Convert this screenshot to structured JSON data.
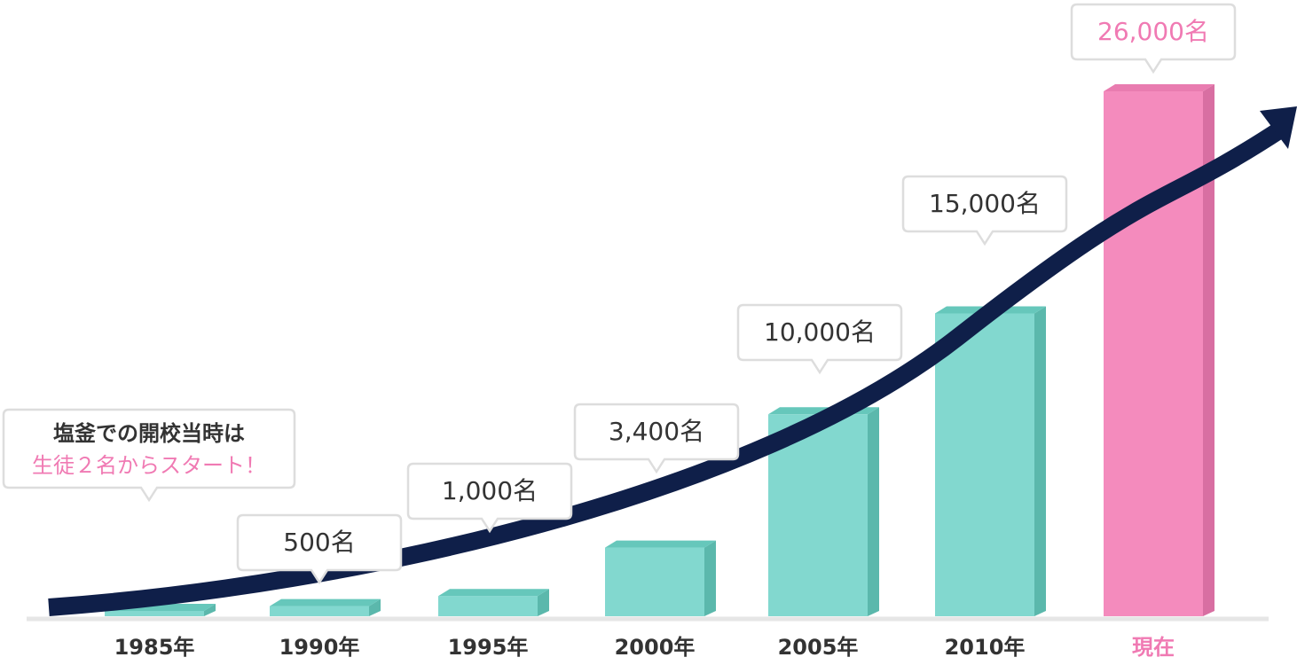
{
  "chart_data": {
    "type": "bar",
    "categories": [
      "1985年",
      "1990年",
      "1995年",
      "2000年",
      "2005年",
      "2010年",
      "現在"
    ],
    "values": [
      2,
      500,
      1000,
      3400,
      10000,
      15000,
      26000
    ],
    "data_labels": [
      "",
      "500名",
      "1,000名",
      "3,400名",
      "10,000名",
      "15,000名",
      "26,000名"
    ],
    "highlight_index": 6,
    "note": {
      "line1": "塩釜での開校当時は",
      "line2": "生徒２名からスタート！"
    },
    "grid": false,
    "legend": "none"
  },
  "colors": {
    "bar": "#82d8cf",
    "bar_side": "#5bb8ac",
    "bar_top": "#66c7bb",
    "highlight_bar": "#f48bbd",
    "highlight_side": "#d86fa2",
    "highlight_top": "#e97cb0",
    "highlight_text": "#f07ab3",
    "text": "#333333",
    "arrow": "#0f1f49",
    "callout_border": "#dddddd",
    "baseline": "#e6e6e6"
  }
}
